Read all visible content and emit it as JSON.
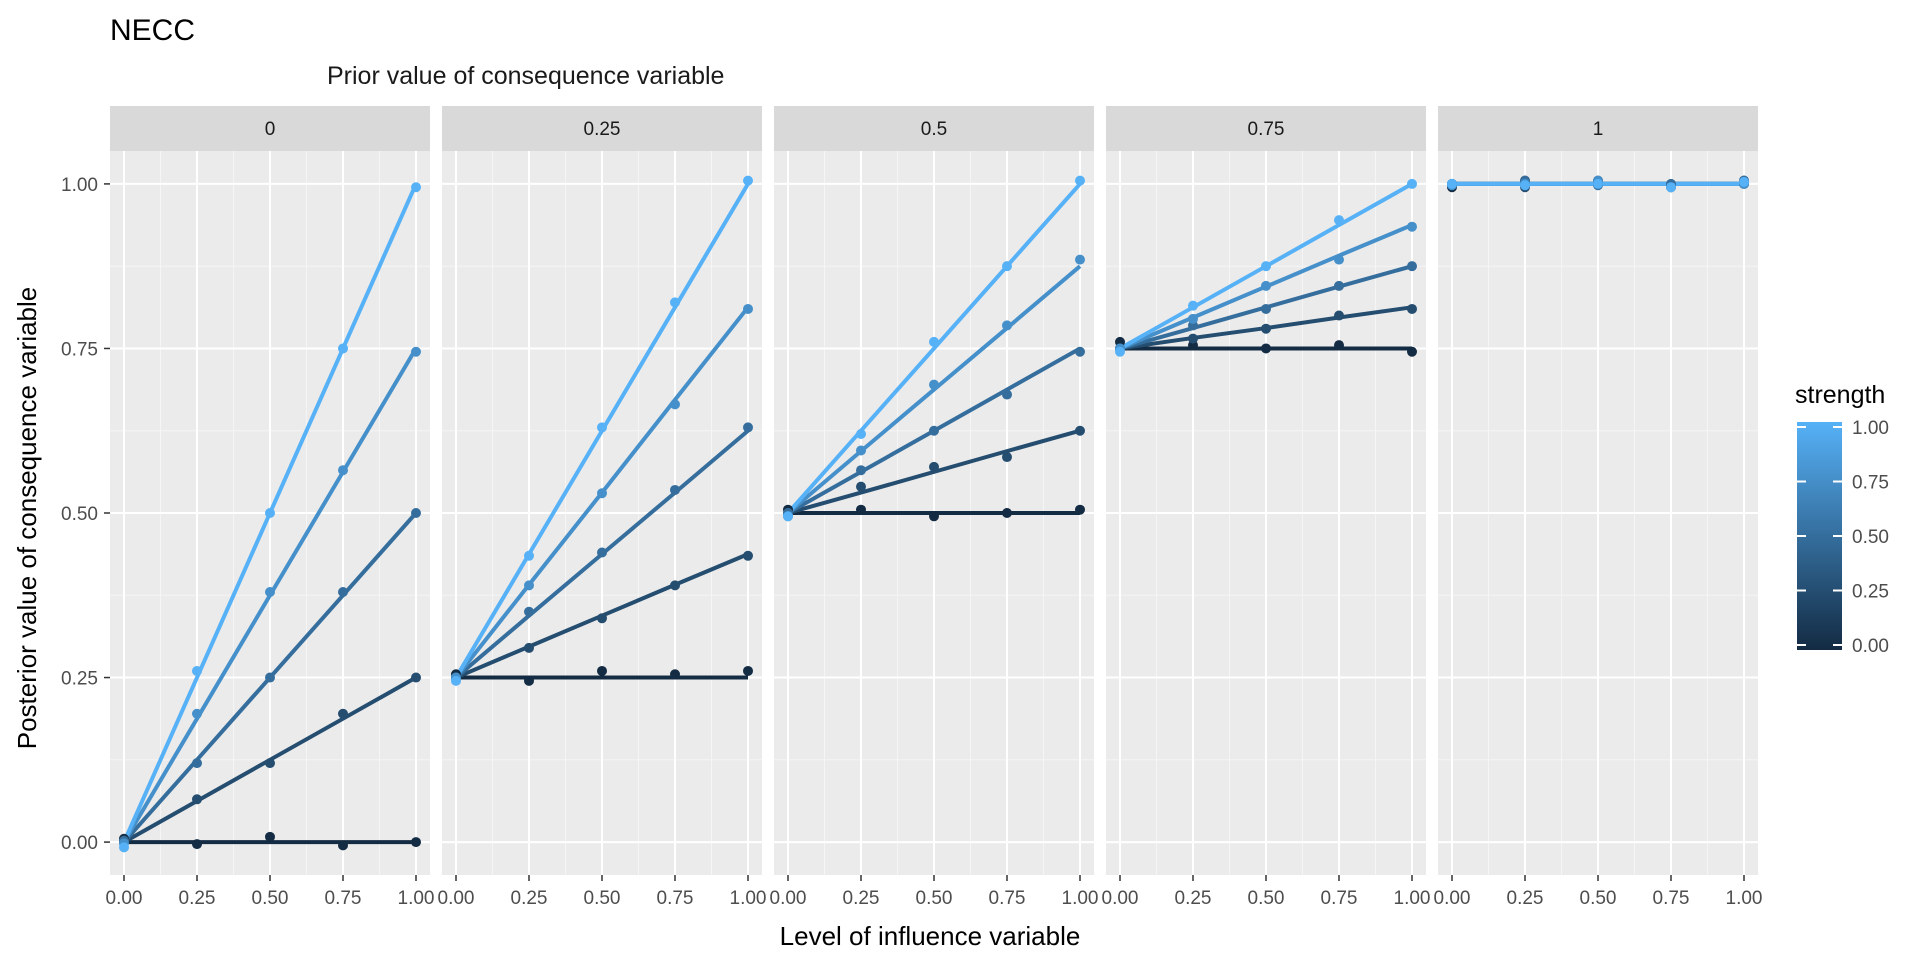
{
  "chart_data": {
    "type": "line",
    "title": "NECC",
    "facet_title": "Prior value of consequence variable",
    "xlabel": "Level of influence variable",
    "ylabel": "Posterior value of consequence variable",
    "xlim": [
      0,
      1
    ],
    "ylim": [
      -0.05,
      1.05
    ],
    "x_ticks": [
      "0.00",
      "0.25",
      "0.50",
      "0.75",
      "1.00"
    ],
    "y_ticks": [
      "0.00",
      "0.25",
      "0.50",
      "0.75",
      "1.00"
    ],
    "grid": true,
    "legend": {
      "title": "strength",
      "position": "right",
      "ticks": [
        "1.00",
        "0.75",
        "0.50",
        "0.25",
        "0.00"
      ],
      "color_low": "#132B43",
      "color_high": "#56B1F7"
    },
    "x": [
      0,
      0.25,
      0.5,
      0.75,
      1
    ],
    "panels": [
      {
        "label": "0",
        "series": [
          {
            "strength": 0,
            "line": [
              0,
              0,
              0,
              0,
              0
            ],
            "points": [
              0.005,
              -0.003,
              0.008,
              -0.005,
              0.0
            ]
          },
          {
            "strength": 0.25,
            "line": [
              0,
              0.0625,
              0.125,
              0.1875,
              0.25
            ],
            "points": [
              0.0,
              0.065,
              0.12,
              0.195,
              0.25
            ]
          },
          {
            "strength": 0.5,
            "line": [
              0,
              0.125,
              0.25,
              0.375,
              0.5
            ],
            "points": [
              0.002,
              0.12,
              0.25,
              0.38,
              0.5
            ]
          },
          {
            "strength": 0.75,
            "line": [
              0,
              0.1875,
              0.375,
              0.5625,
              0.75
            ],
            "points": [
              -0.002,
              0.195,
              0.38,
              0.565,
              0.745
            ]
          },
          {
            "strength": 1,
            "line": [
              0,
              0.25,
              0.5,
              0.75,
              1
            ],
            "points": [
              -0.008,
              0.26,
              0.5,
              0.75,
              0.995
            ]
          }
        ]
      },
      {
        "label": "0.25",
        "series": [
          {
            "strength": 0,
            "line": [
              0.25,
              0.25,
              0.25,
              0.25,
              0.25
            ],
            "points": [
              0.255,
              0.245,
              0.26,
              0.255,
              0.26
            ]
          },
          {
            "strength": 0.25,
            "line": [
              0.25,
              0.297,
              0.344,
              0.391,
              0.4375
            ],
            "points": [
              0.25,
              0.295,
              0.34,
              0.39,
              0.435
            ]
          },
          {
            "strength": 0.5,
            "line": [
              0.25,
              0.344,
              0.4375,
              0.531,
              0.625
            ],
            "points": [
              0.25,
              0.35,
              0.44,
              0.535,
              0.63
            ]
          },
          {
            "strength": 0.75,
            "line": [
              0.25,
              0.391,
              0.531,
              0.672,
              0.8125
            ],
            "points": [
              0.25,
              0.39,
              0.53,
              0.665,
              0.81
            ]
          },
          {
            "strength": 1,
            "line": [
              0.25,
              0.4375,
              0.625,
              0.8125,
              1.0
            ],
            "points": [
              0.245,
              0.435,
              0.63,
              0.82,
              1.005
            ]
          }
        ]
      },
      {
        "label": "0.5",
        "series": [
          {
            "strength": 0,
            "line": [
              0.5,
              0.5,
              0.5,
              0.5,
              0.5
            ],
            "points": [
              0.505,
              0.505,
              0.495,
              0.5,
              0.505
            ]
          },
          {
            "strength": 0.25,
            "line": [
              0.5,
              0.531,
              0.5625,
              0.594,
              0.625
            ],
            "points": [
              0.5,
              0.54,
              0.57,
              0.585,
              0.625
            ]
          },
          {
            "strength": 0.5,
            "line": [
              0.5,
              0.5625,
              0.625,
              0.6875,
              0.75
            ],
            "points": [
              0.5,
              0.565,
              0.625,
              0.68,
              0.745
            ]
          },
          {
            "strength": 0.75,
            "line": [
              0.5,
              0.594,
              0.6875,
              0.781,
              0.875
            ],
            "points": [
              0.495,
              0.595,
              0.695,
              0.785,
              0.885
            ]
          },
          {
            "strength": 1,
            "line": [
              0.5,
              0.625,
              0.75,
              0.875,
              1.0
            ],
            "points": [
              0.495,
              0.62,
              0.76,
              0.875,
              1.005
            ]
          }
        ]
      },
      {
        "label": "0.75",
        "series": [
          {
            "strength": 0,
            "line": [
              0.75,
              0.75,
              0.75,
              0.75,
              0.75
            ],
            "points": [
              0.76,
              0.755,
              0.75,
              0.755,
              0.745
            ]
          },
          {
            "strength": 0.25,
            "line": [
              0.75,
              0.766,
              0.781,
              0.797,
              0.8125
            ],
            "points": [
              0.75,
              0.765,
              0.78,
              0.8,
              0.81
            ]
          },
          {
            "strength": 0.5,
            "line": [
              0.75,
              0.781,
              0.8125,
              0.844,
              0.875
            ],
            "points": [
              0.75,
              0.785,
              0.81,
              0.845,
              0.875
            ]
          },
          {
            "strength": 0.75,
            "line": [
              0.75,
              0.797,
              0.844,
              0.891,
              0.9375
            ],
            "points": [
              0.75,
              0.795,
              0.845,
              0.885,
              0.935
            ]
          },
          {
            "strength": 1,
            "line": [
              0.75,
              0.8125,
              0.875,
              0.9375,
              1.0
            ],
            "points": [
              0.745,
              0.815,
              0.875,
              0.945,
              1.0
            ]
          }
        ]
      },
      {
        "label": "1",
        "series": [
          {
            "strength": 0,
            "line": [
              1,
              1,
              1,
              1,
              1
            ],
            "points": [
              0.995,
              1.005,
              1.005,
              0.998,
              1.005
            ]
          },
          {
            "strength": 0.25,
            "line": [
              1,
              1,
              1,
              1,
              1
            ],
            "points": [
              1.0,
              0.995,
              1.0,
              0.995,
              1.0
            ]
          },
          {
            "strength": 0.5,
            "line": [
              1,
              1,
              1,
              1,
              1
            ],
            "points": [
              1.0,
              1.005,
              0.998,
              1.0,
              1.005
            ]
          },
          {
            "strength": 0.75,
            "line": [
              1,
              1,
              1,
              1,
              1
            ],
            "points": [
              0.998,
              1.0,
              1.005,
              0.995,
              1.0
            ]
          },
          {
            "strength": 1,
            "line": [
              1,
              1,
              1,
              1,
              1
            ],
            "points": [
              1.0,
              0.998,
              1.0,
              0.995,
              1.003
            ]
          }
        ]
      }
    ]
  }
}
